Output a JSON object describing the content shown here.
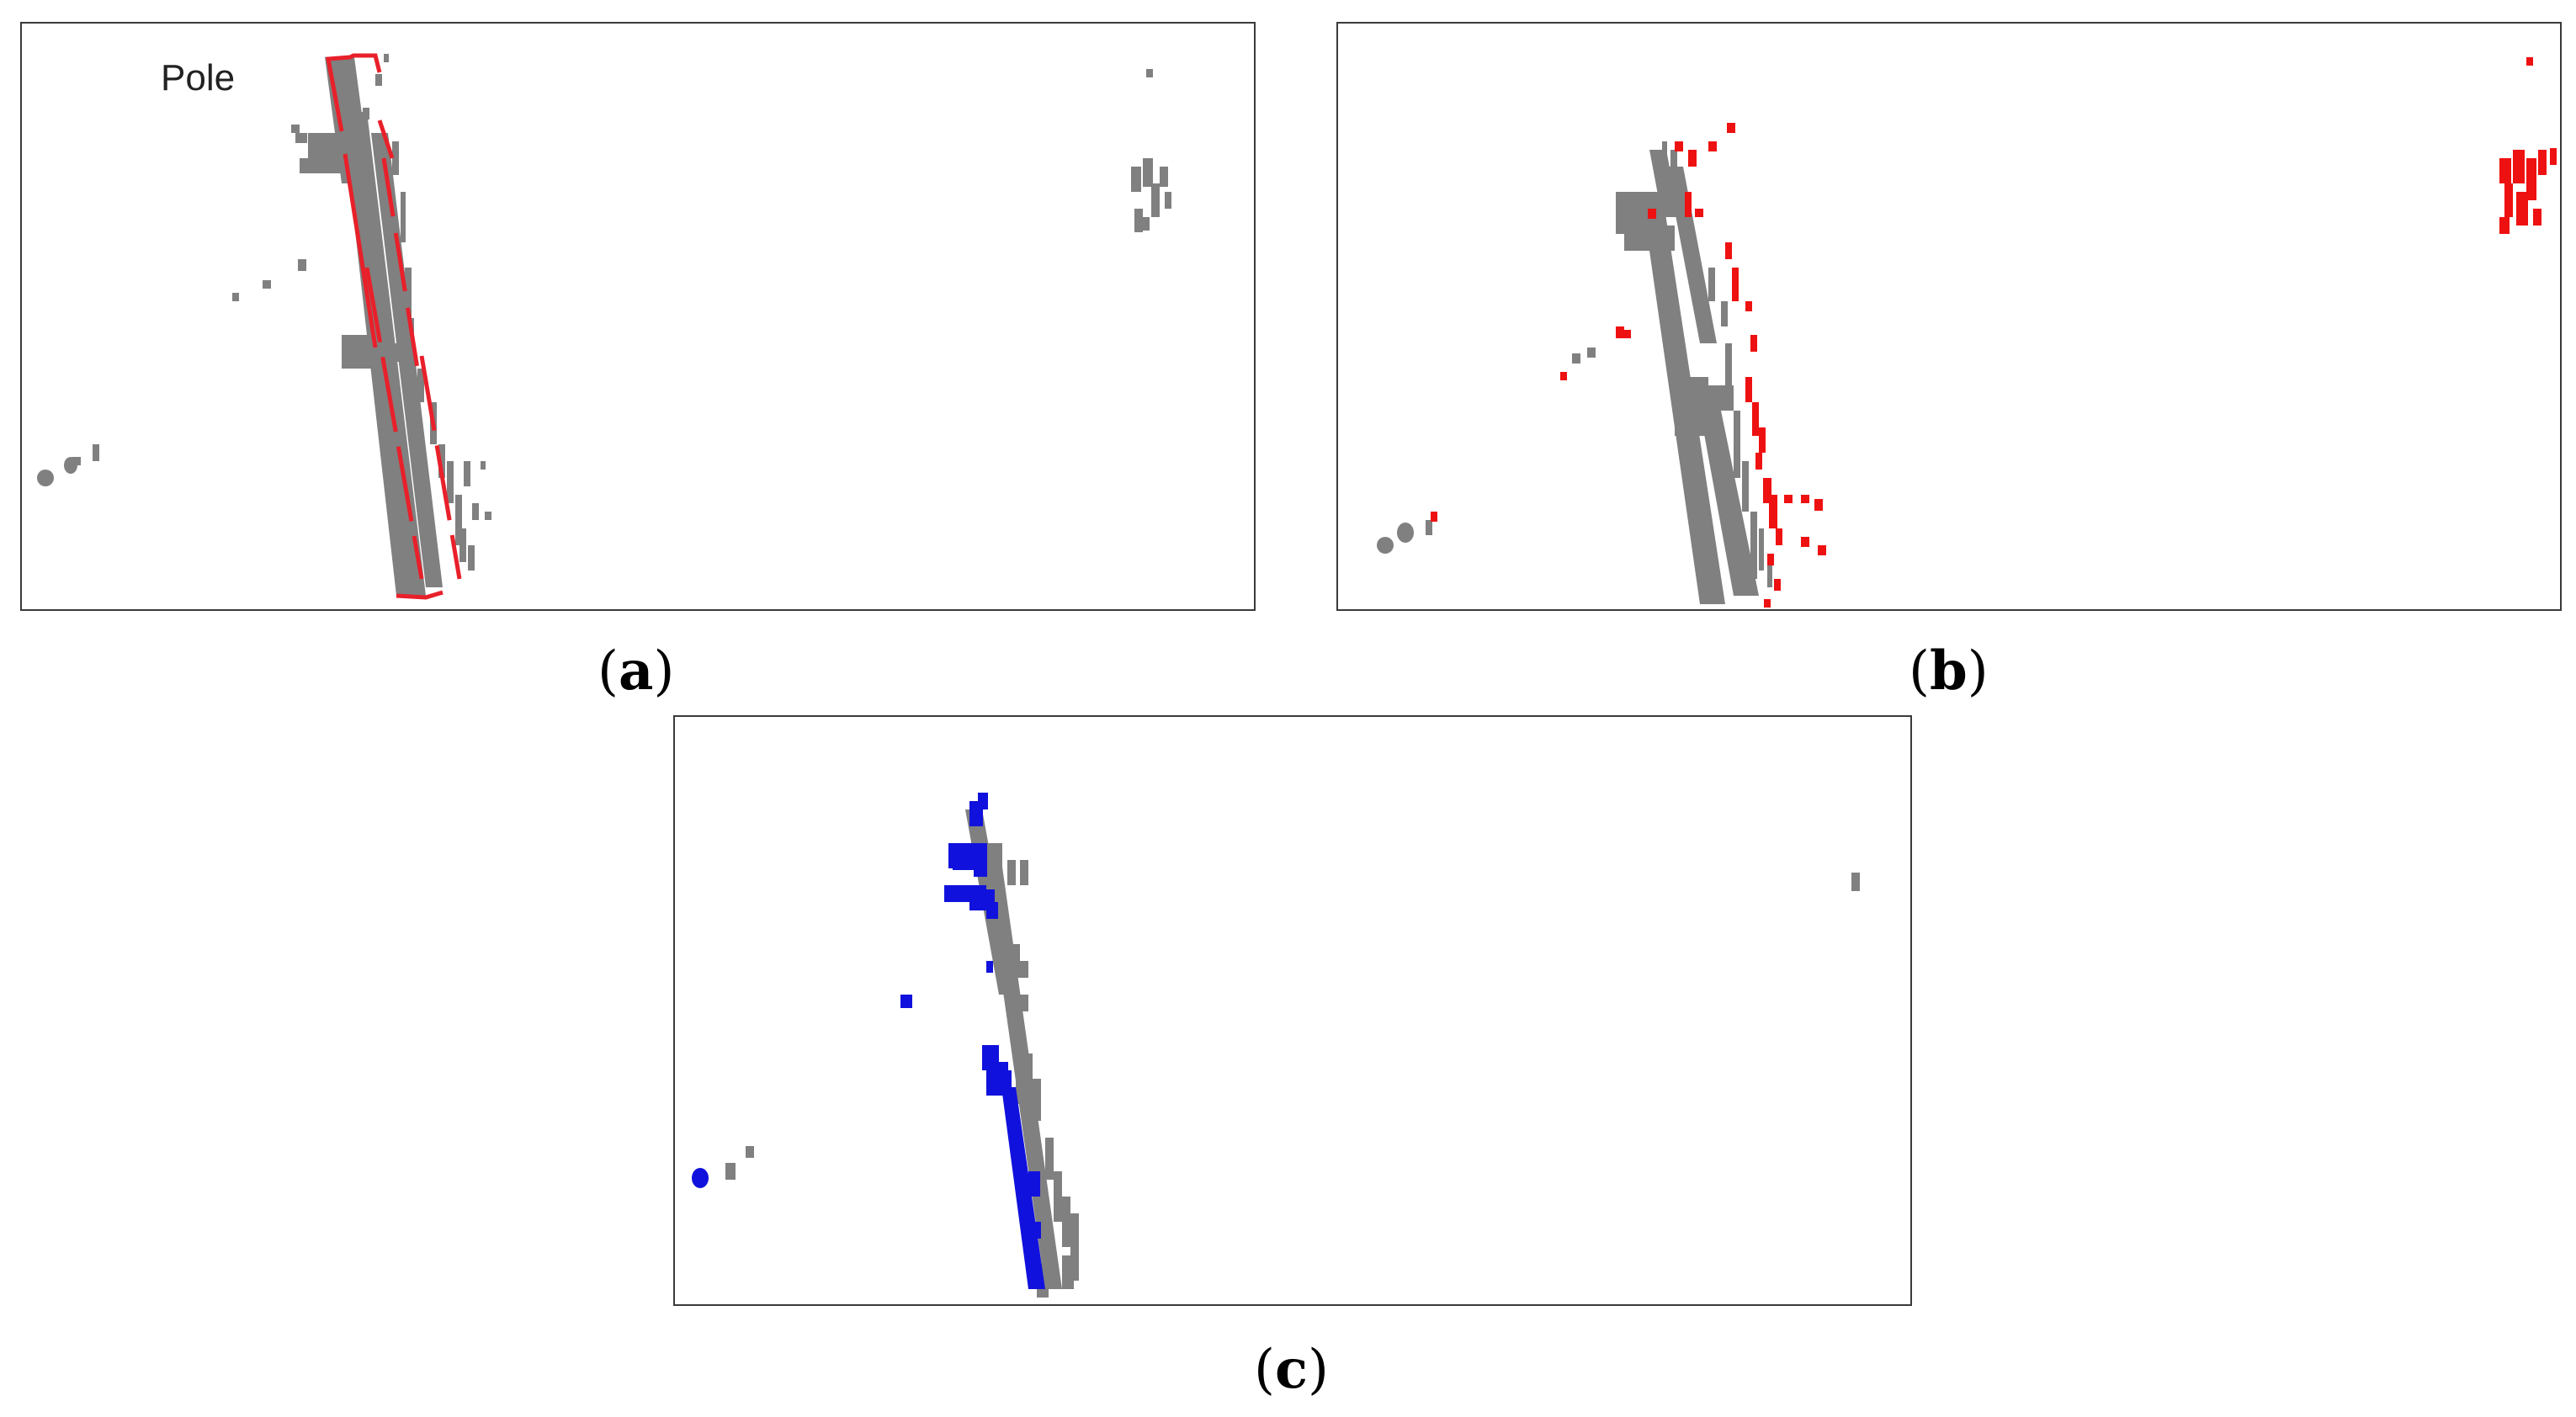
{
  "figure": {
    "panels": [
      {
        "id": "a",
        "caption_open": "(",
        "caption_letter": "a",
        "caption_close": ")",
        "annotation": "Pole"
      },
      {
        "id": "b",
        "caption_open": "(",
        "caption_letter": "b",
        "caption_close": ")"
      },
      {
        "id": "c",
        "caption_open": "(",
        "caption_letter": "c",
        "caption_close": ")"
      }
    ],
    "colors": {
      "points_gray": "#808080",
      "highlight_red": "#ee1111",
      "highlight_blue": "#1111dd",
      "box_red": "#e8202a",
      "border": "#3a3a3a"
    }
  }
}
